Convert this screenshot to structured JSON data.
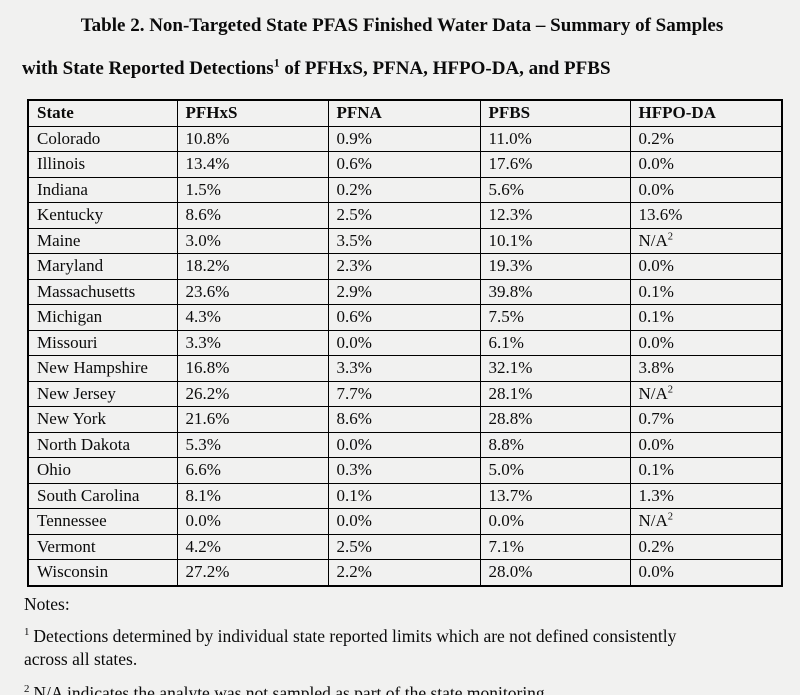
{
  "page": {
    "title_line1": "Table 2. Non-Targeted State PFAS Finished Water Data – Summary of Samples",
    "title_line2_pre": "with State Reported Detections",
    "title_line2_sup": "1",
    "title_line2_post": " of PFHxS, PFNA, HFPO-DA, and PFBS"
  },
  "table": {
    "headers": [
      "State",
      "PFHxS",
      "PFNA",
      "PFBS",
      "HFPO-DA"
    ],
    "rows": [
      {
        "state": "Colorado",
        "values": [
          "10.8%",
          "0.9%",
          "11.0%",
          "0.2%"
        ]
      },
      {
        "state": "Illinois",
        "values": [
          "13.4%",
          "0.6%",
          "17.6%",
          "0.0%"
        ]
      },
      {
        "state": "Indiana",
        "values": [
          "1.5%",
          "0.2%",
          "5.6%",
          "0.0%"
        ]
      },
      {
        "state": "Kentucky",
        "values": [
          "8.6%",
          "2.5%",
          "12.3%",
          "13.6%"
        ]
      },
      {
        "state": "Maine",
        "values": [
          "3.0%",
          "3.5%",
          "10.1%",
          {
            "text": "N/A",
            "sup": "2"
          }
        ]
      },
      {
        "state": "Maryland",
        "values": [
          "18.2%",
          "2.3%",
          "19.3%",
          "0.0%"
        ]
      },
      {
        "state": "Massachusetts",
        "values": [
          "23.6%",
          "2.9%",
          "39.8%",
          "0.1%"
        ]
      },
      {
        "state": "Michigan",
        "values": [
          "4.3%",
          "0.6%",
          "7.5%",
          "0.1%"
        ]
      },
      {
        "state": "Missouri",
        "values": [
          "3.3%",
          "0.0%",
          "6.1%",
          "0.0%"
        ]
      },
      {
        "state": "New Hampshire",
        "values": [
          "16.8%",
          "3.3%",
          "32.1%",
          "3.8%"
        ]
      },
      {
        "state": "New Jersey",
        "values": [
          "26.2%",
          "7.7%",
          "28.1%",
          {
            "text": "N/A",
            "sup": "2"
          }
        ]
      },
      {
        "state": "New York",
        "values": [
          "21.6%",
          "8.6%",
          "28.8%",
          "0.7%"
        ]
      },
      {
        "state": "North Dakota",
        "values": [
          "5.3%",
          "0.0%",
          "8.8%",
          "0.0%"
        ]
      },
      {
        "state": "Ohio",
        "values": [
          "6.6%",
          "0.3%",
          "5.0%",
          "0.1%"
        ]
      },
      {
        "state": "South Carolina",
        "values": [
          "8.1%",
          "0.1%",
          "13.7%",
          "1.3%"
        ]
      },
      {
        "state": "Tennessee",
        "values": [
          "0.0%",
          "0.0%",
          "0.0%",
          {
            "text": "N/A",
            "sup": "2"
          }
        ]
      },
      {
        "state": "Vermont",
        "values": [
          "4.2%",
          "2.5%",
          "7.1%",
          "0.2%"
        ]
      },
      {
        "state": "Wisconsin",
        "values": [
          "27.2%",
          "2.2%",
          "28.0%",
          "0.0%"
        ]
      }
    ]
  },
  "notes": {
    "label": "Notes:",
    "items": [
      {
        "sup": "1",
        "text": "Detections determined by individual state reported limits which are not defined consistently\nacross all states."
      },
      {
        "sup": "2",
        "text": "N/A indicates the analyte was not sampled as part of the state monitoring."
      }
    ]
  }
}
